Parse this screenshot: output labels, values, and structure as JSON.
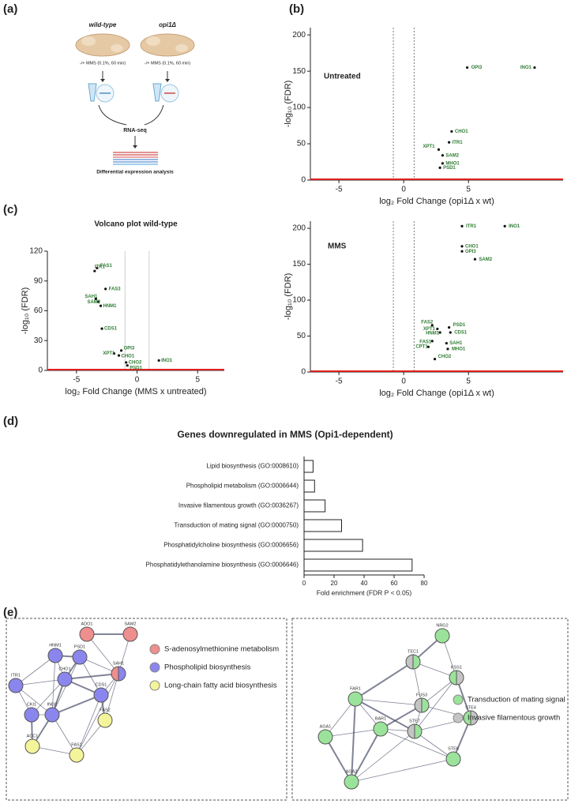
{
  "panel_labels": [
    "(a)",
    "(b)",
    "(c)",
    "(d)",
    "(e)"
  ],
  "schematic": {
    "strains": [
      "wild-type",
      "opi1Δ"
    ],
    "treatments": [
      "-/+ MMS (0.1%, 60 min)",
      "-/+ MMS (0.1%, 60 min)"
    ],
    "step": "RNA-seq",
    "result": "Differential expression analysis"
  },
  "chart_data": [
    {
      "type": "volcano",
      "title": "Untreated",
      "xlabel": "log₂ Fold Change  (opi1Δ x wt)",
      "ylabel": "-log₁₀ (FDR)",
      "xlim": [
        -7.2,
        12.3
      ],
      "ylim": [
        0,
        210
      ],
      "xticks": [
        -5,
        0,
        5
      ],
      "yticks": [
        0,
        50,
        100,
        150,
        200
      ],
      "thresholds": [
        -0.8,
        0.8
      ],
      "label_color": "#2e7d32",
      "labels": [
        "OPI3",
        "INO1",
        "CHO1",
        "ITR1",
        "XPT1",
        "SAM2",
        "MHO1",
        "PSD1"
      ],
      "x": [
        4.9,
        10.1,
        3.7,
        3.5,
        2.7,
        3.0,
        3.0,
        2.8
      ],
      "y": [
        155,
        155,
        67,
        52,
        42,
        34,
        23,
        17
      ]
    },
    {
      "type": "volcano",
      "title": "Volcano plot wild-type",
      "xlabel": "log₂ Fold Change (MMS x untreated)",
      "ylabel": "-log₁₀ (FDR)",
      "xlim": [
        -7.4,
        7.2
      ],
      "ylim": [
        0,
        120
      ],
      "xticks": [
        -5,
        0,
        5
      ],
      "yticks": [
        0,
        30,
        60,
        90,
        120
      ],
      "thresholds": [
        -1,
        1
      ],
      "label_color": "#2e7d32",
      "labels": [
        "FAS1",
        "ITR1",
        "FAS3",
        "SAH1",
        "SAM2",
        "HNM1",
        "CDS1",
        "OPI3",
        "XPT1",
        "CHO1",
        "CHO2",
        "PSD1",
        "INO1"
      ],
      "x": [
        -3.3,
        -3.5,
        -2.6,
        -3.4,
        -3.2,
        -3.0,
        -2.9,
        -1.3,
        -1.9,
        -1.5,
        -0.9,
        -0.8,
        1.8
      ],
      "y": [
        103,
        100,
        82,
        72,
        69,
        65,
        42,
        20,
        17,
        15,
        8,
        5,
        10
      ]
    },
    {
      "type": "volcano",
      "title": "MMS",
      "xlabel": "log₂ Fold Change  (opi1Δ x wt)",
      "ylabel": "-log₁₀ (FDR)",
      "xlim": [
        -7.2,
        12.3
      ],
      "ylim": [
        0,
        210
      ],
      "xticks": [
        -5,
        0,
        5
      ],
      "yticks": [
        0,
        50,
        100,
        150,
        200
      ],
      "thresholds": [
        -0.8,
        0.8
      ],
      "label_color": "#2e7d32",
      "labels": [
        "ITR1",
        "INO1",
        "CHO1",
        "OPI3",
        "SAM2",
        "FAS2",
        "PSD1",
        "XPT1",
        "CDS1",
        "HNM1",
        "FAS1",
        "SAH1",
        "CPT1",
        "MHO1",
        "CHO2"
      ],
      "x": [
        4.5,
        7.8,
        4.5,
        4.5,
        5.5,
        2.2,
        3.5,
        2.6,
        3.6,
        2.8,
        2.2,
        3.3,
        1.9,
        3.4,
        2.4
      ],
      "y": [
        203,
        203,
        175,
        168,
        157,
        65,
        62,
        60,
        55,
        55,
        43,
        40,
        35,
        32,
        18
      ]
    },
    {
      "type": "hbar",
      "title": "Genes downregulated in MMS (Opi1-dependent)",
      "xlabel": "Fold enrichment (FDR P < 0.05)",
      "categories": [
        "Lipid biosynthesis (GO:0008610)",
        "Phospholipid metabolism (GO:0006644)",
        "Invasive filamentous growth (GO:0036267)",
        "Transduction of mating signal (GO:0000750)",
        "Phosphatidylcholine biosynthesis (GO:0006656)",
        "Phosphatidylethanolamine biosynthesis (GO:0006646)"
      ],
      "values": [
        6,
        7,
        14,
        25,
        39,
        72
      ],
      "color": "#ffffff",
      "xlim": [
        0,
        80
      ],
      "xticks": [
        0,
        20,
        40,
        60,
        80
      ]
    }
  ],
  "networks": [
    {
      "legend": [
        {
          "name": "S-adenosylmethionine metabolism",
          "color": "#ee8e8e"
        },
        {
          "name": "Phospholipid biosynthesis",
          "color": "#8a86ee"
        },
        {
          "name": "Long-chain fatty acid biosynthesis",
          "color": "#f4f49a"
        }
      ],
      "nodes": [
        "ADO1",
        "SAM2",
        "HNM1",
        "PSD1",
        "SAH1",
        "CHO1",
        "CDS1",
        "ITR1",
        "CKI1",
        "INO2",
        "FAS2",
        "ACC1",
        "FAS1"
      ]
    },
    {
      "legend": [
        {
          "name": "Transduction of mating signal",
          "color": "#9be39b"
        },
        {
          "name": "Invasive filamentous growth",
          "color": "#c4c4c4"
        }
      ],
      "nodes": [
        "NRG2",
        "TEC1",
        "KSS1",
        "FAR1",
        "FUS3",
        "STE4",
        "BAR1",
        "STE7",
        "AGA1",
        "STE6",
        "AGA2"
      ]
    }
  ]
}
